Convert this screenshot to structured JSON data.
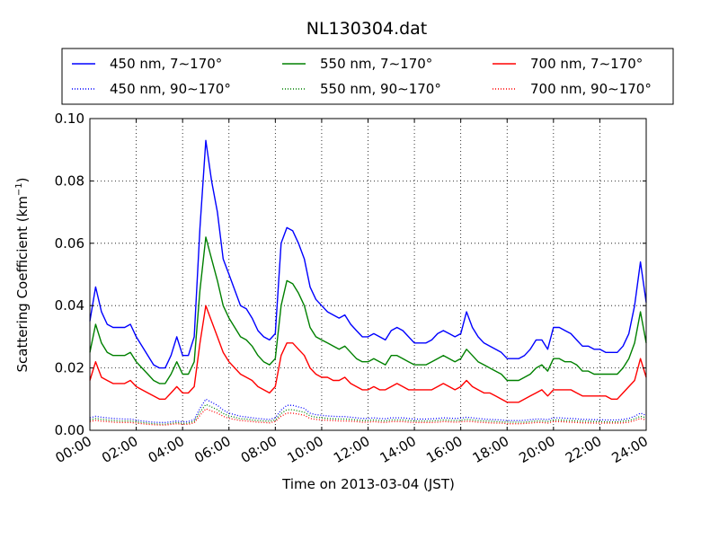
{
  "chart_data": {
    "type": "line",
    "title": "NL130304.dat",
    "xlabel": "Time on 2013-03-04 (JST)",
    "ylabel_main": "Scattering Coefficient (km",
    "ylabel_sup": "−1",
    "ylabel_end": ")",
    "xlim": [
      0,
      24
    ],
    "ylim": [
      0,
      0.1
    ],
    "grid": true,
    "legend_position": "top",
    "x_ticks": [
      {
        "value": 0,
        "label": "00:00"
      },
      {
        "value": 2,
        "label": "02:00"
      },
      {
        "value": 4,
        "label": "04:00"
      },
      {
        "value": 6,
        "label": "06:00"
      },
      {
        "value": 8,
        "label": "08:00"
      },
      {
        "value": 10,
        "label": "10:00"
      },
      {
        "value": 12,
        "label": "12:00"
      },
      {
        "value": 14,
        "label": "14:00"
      },
      {
        "value": 16,
        "label": "16:00"
      },
      {
        "value": 18,
        "label": "18:00"
      },
      {
        "value": 20,
        "label": "20:00"
      },
      {
        "value": 22,
        "label": "22:00"
      },
      {
        "value": 24,
        "label": "24:00"
      }
    ],
    "y_ticks": [
      {
        "value": 0.0,
        "label": "0.00"
      },
      {
        "value": 0.02,
        "label": "0.02"
      },
      {
        "value": 0.04,
        "label": "0.04"
      },
      {
        "value": 0.06,
        "label": "0.06"
      },
      {
        "value": 0.08,
        "label": "0.08"
      },
      {
        "value": 0.1,
        "label": "0.10"
      }
    ],
    "x": [
      0.0,
      0.25,
      0.5,
      0.75,
      1.0,
      1.25,
      1.5,
      1.75,
      2.0,
      2.25,
      2.5,
      2.75,
      3.0,
      3.25,
      3.5,
      3.75,
      4.0,
      4.25,
      4.5,
      4.75,
      5.0,
      5.25,
      5.5,
      5.75,
      6.0,
      6.25,
      6.5,
      6.75,
      7.0,
      7.25,
      7.5,
      7.75,
      8.0,
      8.25,
      8.5,
      8.75,
      9.0,
      9.25,
      9.5,
      9.75,
      10.0,
      10.25,
      10.5,
      10.75,
      11.0,
      11.25,
      11.5,
      11.75,
      12.0,
      12.25,
      12.5,
      12.75,
      13.0,
      13.25,
      13.5,
      13.75,
      14.0,
      14.25,
      14.5,
      14.75,
      15.0,
      15.25,
      15.5,
      15.75,
      16.0,
      16.25,
      16.5,
      16.75,
      17.0,
      17.25,
      17.5,
      17.75,
      18.0,
      18.25,
      18.5,
      18.75,
      19.0,
      19.25,
      19.5,
      19.75,
      20.0,
      20.25,
      20.5,
      20.75,
      21.0,
      21.25,
      21.5,
      21.75,
      22.0,
      22.25,
      22.5,
      22.75,
      23.0,
      23.25,
      23.5,
      23.75,
      24.0
    ],
    "series": [
      {
        "name": "450 nm, 7∼170°",
        "color": "#0000ff",
        "style": "solid",
        "values": [
          0.035,
          0.046,
          0.038,
          0.034,
          0.033,
          0.033,
          0.033,
          0.034,
          0.03,
          0.027,
          0.024,
          0.021,
          0.02,
          0.02,
          0.024,
          0.03,
          0.024,
          0.024,
          0.03,
          0.065,
          0.093,
          0.08,
          0.07,
          0.055,
          0.05,
          0.045,
          0.04,
          0.039,
          0.036,
          0.032,
          0.03,
          0.029,
          0.031,
          0.06,
          0.065,
          0.064,
          0.06,
          0.055,
          0.046,
          0.042,
          0.04,
          0.038,
          0.037,
          0.036,
          0.037,
          0.034,
          0.032,
          0.03,
          0.03,
          0.031,
          0.03,
          0.029,
          0.032,
          0.033,
          0.032,
          0.03,
          0.028,
          0.028,
          0.028,
          0.029,
          0.031,
          0.032,
          0.031,
          0.03,
          0.031,
          0.038,
          0.033,
          0.03,
          0.028,
          0.027,
          0.026,
          0.025,
          0.023,
          0.023,
          0.023,
          0.024,
          0.026,
          0.029,
          0.029,
          0.026,
          0.033,
          0.033,
          0.032,
          0.031,
          0.029,
          0.027,
          0.027,
          0.026,
          0.026,
          0.025,
          0.025,
          0.025,
          0.027,
          0.031,
          0.04,
          0.054,
          0.041
        ]
      },
      {
        "name": "450 nm, 90∼170°",
        "color": "#0000ff",
        "style": "dotted",
        "values": [
          0.004,
          0.0045,
          0.0042,
          0.004,
          0.0038,
          0.0037,
          0.0036,
          0.0036,
          0.0033,
          0.003,
          0.0028,
          0.0026,
          0.0025,
          0.0025,
          0.0027,
          0.003,
          0.0027,
          0.0028,
          0.0035,
          0.007,
          0.01,
          0.009,
          0.008,
          0.0065,
          0.0055,
          0.005,
          0.0045,
          0.0043,
          0.004,
          0.0038,
          0.0036,
          0.0035,
          0.004,
          0.0065,
          0.008,
          0.008,
          0.0075,
          0.007,
          0.0055,
          0.005,
          0.0048,
          0.0046,
          0.0045,
          0.0044,
          0.0044,
          0.0042,
          0.004,
          0.0038,
          0.0038,
          0.004,
          0.0038,
          0.0037,
          0.004,
          0.004,
          0.004,
          0.0038,
          0.0036,
          0.0036,
          0.0036,
          0.0037,
          0.0038,
          0.004,
          0.0039,
          0.0038,
          0.0039,
          0.0042,
          0.004,
          0.0038,
          0.0036,
          0.0035,
          0.0034,
          0.0033,
          0.0031,
          0.0031,
          0.0031,
          0.0032,
          0.0034,
          0.0036,
          0.0036,
          0.0034,
          0.004,
          0.004,
          0.0039,
          0.0038,
          0.0037,
          0.0035,
          0.0035,
          0.0034,
          0.0034,
          0.0033,
          0.0033,
          0.0033,
          0.0035,
          0.0038,
          0.0045,
          0.0055,
          0.0048
        ]
      },
      {
        "name": "550 nm, 7∼170°",
        "color": "#008000",
        "style": "solid",
        "values": [
          0.025,
          0.034,
          0.028,
          0.025,
          0.024,
          0.024,
          0.024,
          0.025,
          0.022,
          0.02,
          0.018,
          0.016,
          0.015,
          0.015,
          0.018,
          0.022,
          0.018,
          0.018,
          0.022,
          0.045,
          0.062,
          0.055,
          0.048,
          0.04,
          0.036,
          0.033,
          0.03,
          0.029,
          0.027,
          0.024,
          0.022,
          0.021,
          0.023,
          0.04,
          0.048,
          0.047,
          0.044,
          0.04,
          0.033,
          0.03,
          0.029,
          0.028,
          0.027,
          0.026,
          0.027,
          0.025,
          0.023,
          0.022,
          0.022,
          0.023,
          0.022,
          0.021,
          0.024,
          0.024,
          0.023,
          0.022,
          0.021,
          0.021,
          0.021,
          0.022,
          0.023,
          0.024,
          0.023,
          0.022,
          0.023,
          0.026,
          0.024,
          0.022,
          0.021,
          0.02,
          0.019,
          0.018,
          0.016,
          0.016,
          0.016,
          0.017,
          0.018,
          0.02,
          0.021,
          0.019,
          0.023,
          0.023,
          0.022,
          0.022,
          0.021,
          0.019,
          0.019,
          0.018,
          0.018,
          0.018,
          0.018,
          0.018,
          0.02,
          0.023,
          0.028,
          0.038,
          0.028
        ]
      },
      {
        "name": "550 nm, 90∼170°",
        "color": "#008000",
        "style": "dotted",
        "values": [
          0.0033,
          0.0038,
          0.0035,
          0.0033,
          0.0031,
          0.003,
          0.003,
          0.003,
          0.0027,
          0.0025,
          0.0023,
          0.0021,
          0.002,
          0.002,
          0.0022,
          0.0025,
          0.0022,
          0.0023,
          0.0029,
          0.0058,
          0.0083,
          0.0075,
          0.0066,
          0.0054,
          0.0046,
          0.0042,
          0.0037,
          0.0036,
          0.0033,
          0.0031,
          0.003,
          0.0029,
          0.0033,
          0.0054,
          0.0066,
          0.0066,
          0.0062,
          0.0058,
          0.0046,
          0.0042,
          0.004,
          0.0038,
          0.0037,
          0.0036,
          0.0036,
          0.0035,
          0.0033,
          0.0031,
          0.0031,
          0.0033,
          0.0031,
          0.003,
          0.0033,
          0.0033,
          0.0033,
          0.0031,
          0.003,
          0.003,
          0.003,
          0.003,
          0.0031,
          0.0033,
          0.0032,
          0.0031,
          0.0032,
          0.0035,
          0.0033,
          0.0031,
          0.003,
          0.0029,
          0.0028,
          0.0027,
          0.0026,
          0.0026,
          0.0026,
          0.0026,
          0.0028,
          0.003,
          0.003,
          0.0028,
          0.0033,
          0.0033,
          0.0032,
          0.0031,
          0.003,
          0.0029,
          0.0029,
          0.0028,
          0.0028,
          0.0027,
          0.0027,
          0.0027,
          0.0029,
          0.0031,
          0.0037,
          0.0045,
          0.004
        ]
      },
      {
        "name": "700 nm, 7∼170°",
        "color": "#ff0000",
        "style": "solid",
        "values": [
          0.016,
          0.022,
          0.017,
          0.016,
          0.015,
          0.015,
          0.015,
          0.016,
          0.014,
          0.013,
          0.012,
          0.011,
          0.01,
          0.01,
          0.012,
          0.014,
          0.012,
          0.012,
          0.014,
          0.028,
          0.04,
          0.035,
          0.03,
          0.025,
          0.022,
          0.02,
          0.018,
          0.017,
          0.016,
          0.014,
          0.013,
          0.012,
          0.014,
          0.024,
          0.028,
          0.028,
          0.026,
          0.024,
          0.02,
          0.018,
          0.017,
          0.017,
          0.016,
          0.016,
          0.017,
          0.015,
          0.014,
          0.013,
          0.013,
          0.014,
          0.013,
          0.013,
          0.014,
          0.015,
          0.014,
          0.013,
          0.013,
          0.013,
          0.013,
          0.013,
          0.014,
          0.015,
          0.014,
          0.013,
          0.014,
          0.016,
          0.014,
          0.013,
          0.012,
          0.012,
          0.011,
          0.01,
          0.009,
          0.009,
          0.009,
          0.01,
          0.011,
          0.012,
          0.013,
          0.011,
          0.013,
          0.013,
          0.013,
          0.013,
          0.012,
          0.011,
          0.011,
          0.011,
          0.011,
          0.011,
          0.01,
          0.01,
          0.012,
          0.014,
          0.016,
          0.023,
          0.017
        ]
      },
      {
        "name": "700 nm, 90∼170°",
        "color": "#ff0000",
        "style": "dotted",
        "values": [
          0.0028,
          0.0032,
          0.0029,
          0.0028,
          0.0026,
          0.0025,
          0.0025,
          0.0025,
          0.0023,
          0.0021,
          0.0019,
          0.0018,
          0.0017,
          0.0017,
          0.0019,
          0.0021,
          0.0019,
          0.0019,
          0.0024,
          0.0048,
          0.0069,
          0.0062,
          0.0055,
          0.0045,
          0.0038,
          0.0035,
          0.0031,
          0.003,
          0.0028,
          0.0026,
          0.0025,
          0.0024,
          0.0028,
          0.0045,
          0.0055,
          0.0055,
          0.0052,
          0.0048,
          0.0038,
          0.0035,
          0.0033,
          0.0032,
          0.0031,
          0.003,
          0.003,
          0.0029,
          0.0028,
          0.0026,
          0.0026,
          0.0028,
          0.0026,
          0.0025,
          0.0028,
          0.0028,
          0.0028,
          0.0026,
          0.0025,
          0.0025,
          0.0025,
          0.0025,
          0.0026,
          0.0028,
          0.0027,
          0.0026,
          0.0027,
          0.0029,
          0.0028,
          0.0026,
          0.0025,
          0.0024,
          0.0023,
          0.0023,
          0.0021,
          0.0021,
          0.0021,
          0.0022,
          0.0023,
          0.0025,
          0.0025,
          0.0023,
          0.0028,
          0.0028,
          0.0027,
          0.0026,
          0.0025,
          0.0024,
          0.0024,
          0.0023,
          0.0023,
          0.0023,
          0.0023,
          0.0023,
          0.0024,
          0.0026,
          0.0031,
          0.0038,
          0.0033
        ]
      }
    ]
  }
}
